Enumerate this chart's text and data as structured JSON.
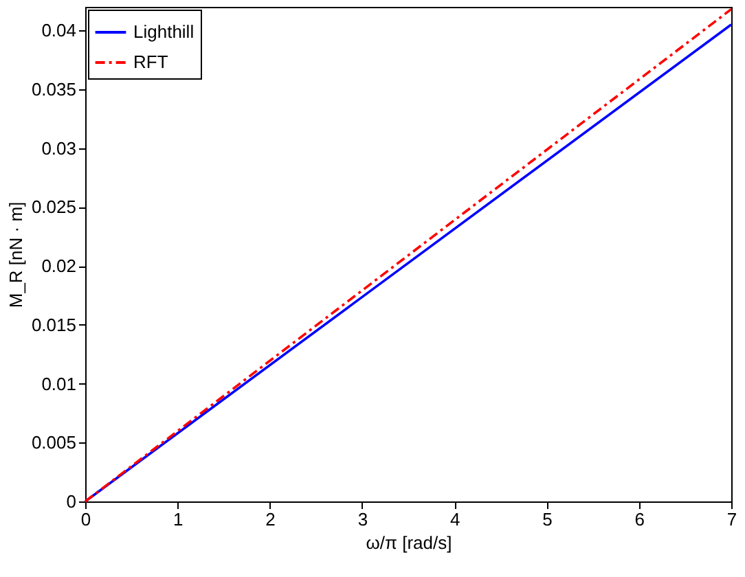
{
  "chart_data": {
    "type": "line",
    "xlabel": "ω/π [rad/s]",
    "ylabel": "M_R [nN · m]",
    "x": [
      0,
      7
    ],
    "series": [
      {
        "name": "Lighthill",
        "color": "#0000ff",
        "line_style": "solid",
        "values": [
          0,
          0.0405
        ]
      },
      {
        "name": "RFT",
        "color": "#ff0000",
        "line_style": "dashed",
        "values": [
          0,
          0.0418
        ]
      }
    ],
    "xlim": [
      0,
      7
    ],
    "xticks": [
      0,
      1,
      2,
      3,
      4,
      5,
      6,
      7
    ],
    "ylim": [
      0,
      0.042
    ],
    "yticks": [
      0,
      0.005,
      0.01,
      0.015,
      0.02,
      0.025,
      0.03,
      0.035,
      0.04
    ],
    "grid": false,
    "legend": "top left",
    "marker": "none"
  }
}
